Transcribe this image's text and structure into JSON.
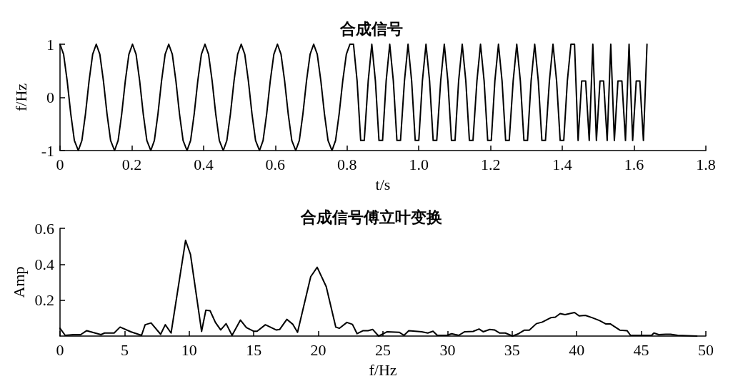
{
  "chart_data": [
    {
      "type": "line",
      "title": "合成信号",
      "xlabel": "t/s",
      "ylabel": "f/Hz",
      "color": "#000000",
      "xlim": [
        0,
        1.8
      ],
      "xticks": [
        0,
        0.2,
        0.4,
        0.6,
        0.8,
        {
          "value": 1,
          "label": "1.0"
        },
        1.2,
        1.4,
        1.6,
        1.8
      ],
      "ylim": [
        -1,
        1
      ],
      "yticks": [
        -1,
        0,
        1
      ],
      "x": [
        0,
        0.01,
        0.02,
        0.03,
        0.04,
        0.051,
        0.061,
        0.071,
        0.081,
        0.091,
        0.101,
        0.111,
        0.121,
        0.131,
        0.141,
        0.152,
        0.162,
        0.172,
        0.182,
        0.192,
        0.202,
        0.212,
        0.222,
        0.232,
        0.242,
        0.253,
        0.263,
        0.273,
        0.283,
        0.293,
        0.303,
        0.313,
        0.323,
        0.333,
        0.343,
        0.354,
        0.364,
        0.374,
        0.384,
        0.394,
        0.404,
        0.414,
        0.424,
        0.434,
        0.444,
        0.455,
        0.465,
        0.475,
        0.485,
        0.495,
        0.505,
        0.515,
        0.525,
        0.535,
        0.545,
        0.556,
        0.566,
        0.576,
        0.586,
        0.596,
        0.606,
        0.616,
        0.626,
        0.636,
        0.646,
        0.657,
        0.667,
        0.677,
        0.687,
        0.697,
        0.707,
        0.717,
        0.727,
        0.737,
        0.747,
        0.758,
        0.768,
        0.778,
        0.788,
        0.798,
        0.808,
        0.818,
        0.828,
        0.838,
        0.848,
        0.859,
        0.869,
        0.879,
        0.889,
        0.899,
        0.909,
        0.919,
        0.929,
        0.939,
        0.949,
        0.96,
        0.97,
        0.98,
        0.99,
        1,
        1.01,
        1.02,
        1.03,
        1.04,
        1.05,
        1.061,
        1.071,
        1.081,
        1.091,
        1.101,
        1.111,
        1.121,
        1.131,
        1.141,
        1.151,
        1.162,
        1.172,
        1.182,
        1.192,
        1.202,
        1.212,
        1.222,
        1.232,
        1.242,
        1.252,
        1.263,
        1.273,
        1.283,
        1.293,
        1.303,
        1.313,
        1.323,
        1.333,
        1.343,
        1.353,
        1.364,
        1.374,
        1.384,
        1.394,
        1.404,
        1.414,
        1.424,
        1.434,
        1.444,
        1.454,
        1.465,
        1.475,
        1.485,
        1.495,
        1.505,
        1.515,
        1.525,
        1.535,
        1.545,
        1.555,
        1.566,
        1.576,
        1.586,
        1.596,
        1.606,
        1.616,
        1.626,
        1.636
      ],
      "values": [
        1,
        0.81,
        0.31,
        -0.31,
        -0.81,
        -1,
        -0.81,
        -0.31,
        0.31,
        0.81,
        1,
        0.81,
        0.31,
        -0.31,
        -0.81,
        -1,
        -0.81,
        -0.31,
        0.31,
        0.81,
        1,
        0.81,
        0.31,
        -0.31,
        -0.81,
        -1,
        -0.81,
        -0.31,
        0.31,
        0.81,
        1,
        0.81,
        0.31,
        -0.31,
        -0.81,
        -1,
        -0.81,
        -0.31,
        0.31,
        0.81,
        1,
        0.81,
        0.31,
        -0.31,
        -0.81,
        -1,
        -0.81,
        -0.31,
        0.31,
        0.81,
        1,
        0.81,
        0.31,
        -0.31,
        -0.81,
        -1,
        -0.81,
        -0.31,
        0.31,
        0.81,
        1,
        0.81,
        0.31,
        -0.31,
        -0.81,
        -1,
        -0.81,
        -0.31,
        0.31,
        0.81,
        1,
        0.81,
        0.31,
        -0.31,
        -0.81,
        -1,
        -0.81,
        -0.31,
        0.31,
        0.81,
        1,
        1,
        0.31,
        -0.81,
        -0.81,
        0.31,
        1,
        0.31,
        -0.81,
        -0.81,
        0.31,
        1,
        0.31,
        -0.81,
        -0.81,
        0.31,
        1,
        0.31,
        -0.81,
        -0.81,
        0.31,
        1,
        0.31,
        -0.81,
        -0.81,
        0.31,
        1,
        0.31,
        -0.81,
        -0.81,
        0.31,
        1,
        0.31,
        -0.81,
        -0.81,
        0.31,
        1,
        0.31,
        -0.81,
        -0.81,
        0.31,
        1,
        0.31,
        -0.81,
        -0.81,
        0.31,
        1,
        0.31,
        -0.81,
        -0.81,
        0.31,
        1,
        0.31,
        -0.81,
        -0.81,
        0.31,
        1,
        0.31,
        -0.81,
        -0.81,
        0.31,
        1,
        1,
        -0.81,
        0.31,
        0.31,
        -0.81,
        1,
        -0.81,
        0.31,
        0.31,
        -0.81,
        1,
        -0.81,
        0.31,
        0.31,
        -0.81,
        1,
        -0.81,
        0.31,
        0.31,
        -0.81,
        1
      ]
    },
    {
      "type": "line",
      "title": "合成信号傅立叶变换",
      "xlabel": "f/Hz",
      "ylabel": "Amp",
      "color": "#000000",
      "xlim": [
        0,
        50
      ],
      "xticks": [
        0,
        5,
        10,
        15,
        20,
        25,
        30,
        35,
        40,
        45,
        50
      ],
      "ylim": [
        0,
        0.6
      ],
      "yticks": [
        0.2,
        0.4,
        0.6
      ],
      "x": [
        0,
        0.4,
        1.05,
        1.6,
        2.07,
        3.17,
        3.45,
        4.19,
        4.65,
        5.48,
        6.31,
        6.59,
        7.05,
        7.79,
        8.15,
        8.6,
        9.72,
        10.1,
        10.96,
        11.29,
        11.62,
        12.03,
        12.44,
        12.86,
        13.32,
        13.97,
        14.43,
        14.98,
        15.26,
        15.9,
        16.73,
        17.01,
        17.56,
        18.03,
        18.39,
        19.41,
        19.91,
        20.61,
        21.35,
        21.62,
        22.21,
        22.64,
        23,
        23.47,
        23.84,
        24.2,
        24.67,
        25.33,
        26.26,
        26.63,
        27,
        28,
        28.47,
        28.88,
        29.21,
        29.95,
        30.32,
        30.87,
        31.33,
        31.98,
        32.44,
        32.76,
        33.27,
        33.64,
        34.02,
        34.48,
        35.03,
        35.5,
        35.96,
        36.33,
        36.88,
        37.34,
        37.99,
        38.35,
        38.72,
        39.1,
        39.46,
        39.83,
        40.2,
        40.67,
        41.22,
        41.78,
        42.24,
        42.6,
        43.34,
        43.9,
        44.17,
        45.8,
        45.98,
        46.35,
        46.9,
        47.27,
        47.82,
        49.3
      ],
      "values": [
        0.043,
        0.004,
        0.008,
        0.008,
        0.03,
        0.008,
        0.017,
        0.017,
        0.05,
        0.024,
        0.004,
        0.063,
        0.073,
        0.01,
        0.063,
        0.017,
        0.533,
        0.455,
        0.026,
        0.144,
        0.141,
        0.076,
        0.034,
        0.069,
        0.004,
        0.089,
        0.047,
        0.027,
        0.027,
        0.063,
        0.034,
        0.037,
        0.093,
        0.065,
        0.021,
        0.331,
        0.383,
        0.275,
        0.05,
        0.043,
        0.076,
        0.065,
        0.013,
        0.03,
        0.03,
        0.037,
        0,
        0.024,
        0.021,
        0.004,
        0.03,
        0.024,
        0.017,
        0.027,
        0.004,
        0.004,
        0.013,
        0.004,
        0.024,
        0.026,
        0.039,
        0.024,
        0.037,
        0.034,
        0.017,
        0.017,
        0,
        0.013,
        0.033,
        0.033,
        0.069,
        0.078,
        0.102,
        0.105,
        0.125,
        0.119,
        0.125,
        0.131,
        0.112,
        0.115,
        0.102,
        0.086,
        0.068,
        0.068,
        0.033,
        0.03,
        0.004,
        0.004,
        0.017,
        0.008,
        0.01,
        0.01,
        0.004,
        0
      ]
    }
  ]
}
